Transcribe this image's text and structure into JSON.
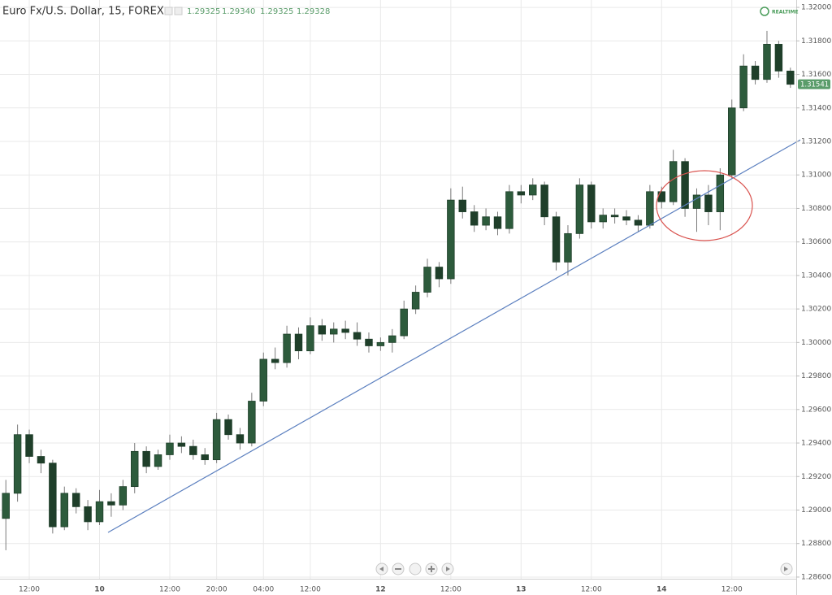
{
  "chart_data": {
    "type": "candlestick",
    "title": "Euro Fx/U.S. Dollar, 15, FOREX",
    "ohlc_legend": [
      "1.29325",
      "1.29340",
      "1.29325",
      "1.29328"
    ],
    "realtime_label": "REALTIME",
    "up_color": "#2d5b3c",
    "down_color": "#1f3f2a",
    "wick_color": "#7a7a7a",
    "grid": true,
    "ylim": [
      1.2859,
      1.32044
    ],
    "yticks": [
      {
        "value": 1.286,
        "label": "1.28600"
      },
      {
        "value": 1.288,
        "label": "1.28800"
      },
      {
        "value": 1.29,
        "label": "1.29000"
      },
      {
        "value": 1.292,
        "label": "1.29200"
      },
      {
        "value": 1.294,
        "label": "1.29400"
      },
      {
        "value": 1.296,
        "label": "1.29600"
      },
      {
        "value": 1.298,
        "label": "1.29800"
      },
      {
        "value": 1.3,
        "label": "1.30000"
      },
      {
        "value": 1.302,
        "label": "1.30200"
      },
      {
        "value": 1.304,
        "label": "1.30400"
      },
      {
        "value": 1.306,
        "label": "1.30600"
      },
      {
        "value": 1.308,
        "label": "1.30800"
      },
      {
        "value": 1.31,
        "label": "1.31000"
      },
      {
        "value": 1.312,
        "label": "1.31200"
      },
      {
        "value": 1.314,
        "label": "1.31400"
      },
      {
        "value": 1.316,
        "label": "1.31600"
      },
      {
        "value": 1.318,
        "label": "1.31800"
      },
      {
        "value": 1.32,
        "label": "1.32000"
      }
    ],
    "last_price": {
      "value": 1.31541,
      "label": "1.31541",
      "color": "#5a9c6a"
    },
    "categories": [
      null,
      null,
      "12:00",
      null,
      null,
      null,
      null,
      null,
      "10",
      null,
      null,
      null,
      null,
      null,
      "12:00",
      null,
      null,
      null,
      "20:00",
      null,
      null,
      null,
      "04:00",
      null,
      null,
      null,
      "12:00",
      null,
      null,
      null,
      null,
      null,
      "12",
      null,
      null,
      null,
      null,
      null,
      "12:00",
      null,
      null,
      null,
      null,
      null,
      "13",
      null,
      null,
      null,
      null,
      null,
      "12:00",
      null,
      null,
      null,
      null,
      null,
      "14",
      null,
      null,
      null,
      null,
      null,
      "12:00",
      null,
      null,
      null,
      null,
      null
    ],
    "open": [
      1.2895,
      1.291,
      1.2945,
      1.2932,
      1.2928,
      1.289,
      1.291,
      1.2902,
      1.2893,
      1.2905,
      1.2903,
      1.2914,
      1.2935,
      1.2926,
      1.2933,
      1.294,
      1.2938,
      1.2933,
      1.293,
      1.2954,
      1.2945,
      1.294,
      1.2965,
      1.299,
      1.2988,
      1.3005,
      1.2995,
      1.301,
      1.3005,
      1.3008,
      1.3006,
      1.3002,
      1.2998,
      1.3,
      1.3004,
      1.302,
      1.303,
      1.3045,
      1.3038,
      1.3085,
      1.3078,
      1.307,
      1.3075,
      1.3068,
      1.309,
      1.3088,
      1.3094,
      1.3075,
      1.3048,
      1.3065,
      1.3094,
      1.3072,
      1.3076,
      1.3075,
      1.3073,
      1.307,
      1.309,
      1.3084,
      1.3108,
      1.308,
      1.3088,
      1.3078,
      1.31,
      1.314,
      1.3165,
      1.3157,
      1.3178,
      1.3162
    ],
    "high": [
      1.2918,
      1.2951,
      1.2948,
      1.2936,
      1.293,
      1.2914,
      1.2913,
      1.2906,
      1.2912,
      1.291,
      1.2918,
      1.294,
      1.2938,
      1.2936,
      1.2945,
      1.2944,
      1.2942,
      1.2937,
      1.2958,
      1.2957,
      1.2949,
      1.297,
      1.2994,
      1.2997,
      1.301,
      1.3009,
      1.3015,
      1.3014,
      1.3012,
      1.3013,
      1.3012,
      1.3006,
      1.3003,
      1.3008,
      1.3025,
      1.3034,
      1.305,
      1.3048,
      1.3092,
      1.3093,
      1.3082,
      1.308,
      1.3078,
      1.3094,
      1.3094,
      1.3098,
      1.3096,
      1.3078,
      1.307,
      1.3098,
      1.3096,
      1.308,
      1.308,
      1.3079,
      1.3076,
      1.3094,
      1.3093,
      1.3115,
      1.311,
      1.3092,
      1.3094,
      1.3104,
      1.3145,
      1.3172,
      1.3168,
      1.3186,
      1.318,
      1.3164
    ],
    "low": [
      1.2876,
      1.2905,
      1.2928,
      1.2922,
      1.2886,
      1.2888,
      1.2898,
      1.2888,
      1.2891,
      1.2896,
      1.29,
      1.291,
      1.2922,
      1.2924,
      1.293,
      1.2934,
      1.293,
      1.2927,
      1.2928,
      1.2942,
      1.2936,
      1.2938,
      1.2962,
      1.2984,
      1.2985,
      1.299,
      1.2993,
      1.3001,
      1.3,
      1.3002,
      1.2998,
      1.2994,
      1.2995,
      1.2994,
      1.3002,
      1.3017,
      1.3027,
      1.3033,
      1.3035,
      1.3074,
      1.3066,
      1.3067,
      1.3064,
      1.3065,
      1.3083,
      1.3085,
      1.307,
      1.3043,
      1.304,
      1.3062,
      1.3068,
      1.3068,
      1.3071,
      1.307,
      1.3066,
      1.3068,
      1.308,
      1.3082,
      1.3075,
      1.3066,
      1.307,
      1.3067,
      1.3098,
      1.3138,
      1.3154,
      1.3155,
      1.3158,
      1.3152
    ],
    "close": [
      1.291,
      1.2945,
      1.2932,
      1.2928,
      1.289,
      1.291,
      1.2902,
      1.2893,
      1.2905,
      1.2903,
      1.2914,
      1.2935,
      1.2926,
      1.2933,
      1.294,
      1.2938,
      1.2933,
      1.293,
      1.2954,
      1.2945,
      1.294,
      1.2965,
      1.299,
      1.2988,
      1.3005,
      1.2995,
      1.301,
      1.3005,
      1.3008,
      1.3006,
      1.3002,
      1.2998,
      1.3,
      1.3004,
      1.302,
      1.303,
      1.3045,
      1.3038,
      1.3085,
      1.3078,
      1.307,
      1.3075,
      1.3068,
      1.309,
      1.3088,
      1.3094,
      1.3075,
      1.3048,
      1.3065,
      1.3094,
      1.3072,
      1.3076,
      1.3075,
      1.3073,
      1.307,
      1.309,
      1.3084,
      1.3108,
      1.308,
      1.3088,
      1.3078,
      1.31,
      1.314,
      1.3165,
      1.3157,
      1.3178,
      1.3162,
      1.31541
    ]
  }
}
